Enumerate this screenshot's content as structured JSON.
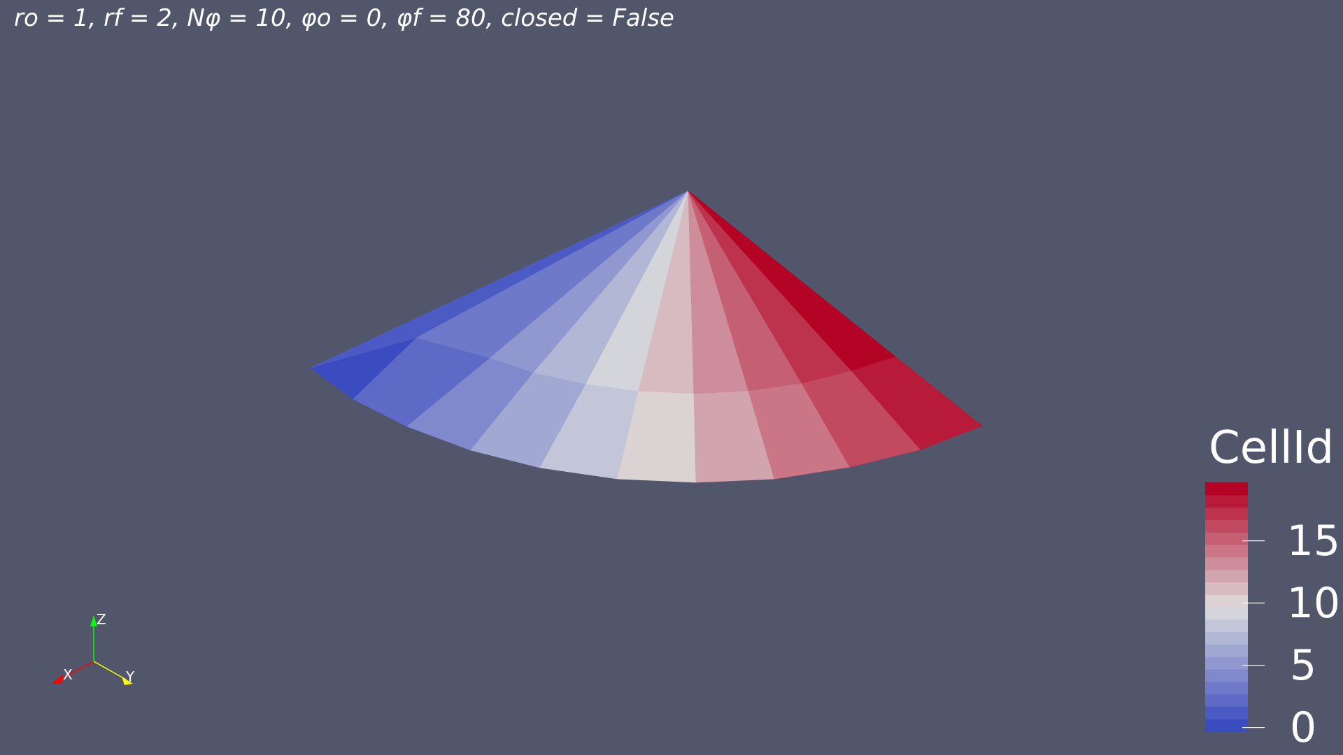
{
  "caption": "ro = 1, rf = 2, Nφ = 10, φo = 0, φf = 80, closed = False",
  "colors": {
    "background": "#52566b",
    "text": "#ffffff",
    "axis_x": "#ff0000",
    "axis_y": "#ffff00",
    "axis_z": "#00ff00"
  },
  "colorbar": {
    "title": "CellId",
    "range": [
      0,
      19
    ],
    "ticks": [
      {
        "value": 0,
        "label": "0"
      },
      {
        "value": 5,
        "label": "5"
      },
      {
        "value": 10,
        "label": "10"
      },
      {
        "value": 15,
        "label": "15"
      }
    ],
    "colormap": "cool-to-warm"
  },
  "mesh": {
    "cell_count": 20
  },
  "axes": {
    "x": "X",
    "y": "Y",
    "z": "Z"
  }
}
